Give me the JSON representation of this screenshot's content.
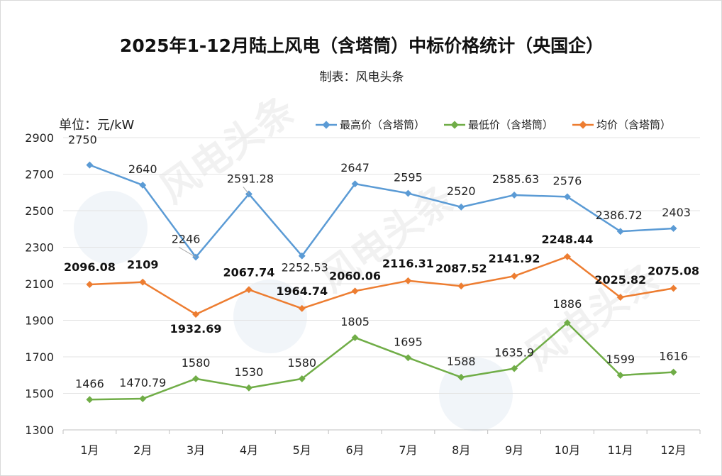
{
  "title": "2025年1-12月陆上风电（含塔筒）中标价格统计（央国企）",
  "subtitle": "制表：风电头条",
  "unit_label": "单位：元/kW",
  "watermark": "风电头条",
  "colors": {
    "max": "#5b9bd5",
    "min": "#70ad47",
    "avg": "#ed7d31",
    "grid": "#e3e3e3",
    "axis": "#bfbfbf"
  },
  "chart_data": {
    "type": "line",
    "categories": [
      "1月",
      "2月",
      "3月",
      "4月",
      "5月",
      "6月",
      "7月",
      "8月",
      "9月",
      "10月",
      "11月",
      "12月"
    ],
    "ylim": [
      1300,
      2900
    ],
    "yticks": [
      1300,
      1500,
      1700,
      1900,
      2100,
      2300,
      2500,
      2700,
      2900
    ],
    "series": [
      {
        "key": "max",
        "name": "最高价（含塔筒）",
        "values": [
          2750,
          2640,
          2246,
          2591.28,
          2252.53,
          2647,
          2595,
          2520,
          2585.63,
          2576,
          2386.72,
          2403
        ],
        "labels": [
          "2750",
          "2640",
          "2246",
          "2591.28",
          "2252.53",
          "2647",
          "2595",
          "2520",
          "2585.63",
          "2576",
          "2386.72",
          "2403"
        ]
      },
      {
        "key": "min",
        "name": "最低价（含塔筒）",
        "values": [
          1466,
          1470.79,
          1580,
          1530,
          1580,
          1805,
          1695,
          1588,
          1635.9,
          1886,
          1599,
          1616
        ],
        "labels": [
          "1466",
          "1470.79",
          "1580",
          "1530",
          "1580",
          "1805",
          "1695",
          "1588",
          "1635.9",
          "1886",
          "1599",
          "1616"
        ]
      },
      {
        "key": "avg",
        "name": "均价（含塔筒）",
        "values": [
          2096.08,
          2109,
          1932.69,
          2067.74,
          1964.74,
          2060.06,
          2116.31,
          2087.52,
          2141.92,
          2248.44,
          2025.82,
          2075.08
        ],
        "labels": [
          "2096.08",
          "2109",
          "1932.69",
          "2067.74",
          "1964.74",
          "2060.06",
          "2116.31",
          "2087.52",
          "2141.92",
          "2248.44",
          "2025.82",
          "2075.08"
        ]
      }
    ]
  }
}
